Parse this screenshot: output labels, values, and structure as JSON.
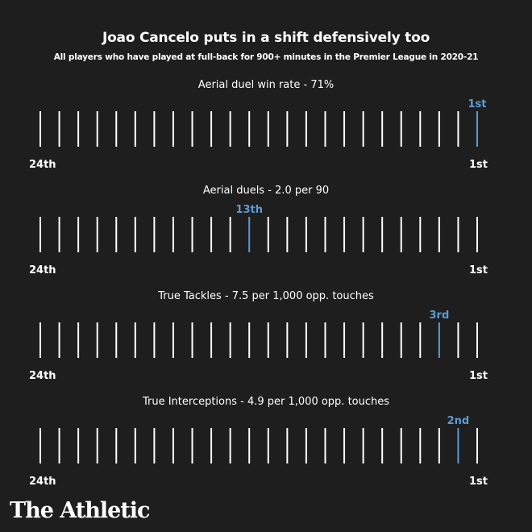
{
  "header": {
    "title": "Joao Cancelo puts in a shift defensively too",
    "subtitle": "All players who have played at full-back for 900+ minutes in the Premier League in 2020-21"
  },
  "brand": "The Athletic",
  "colors": {
    "background": "#1e1e1e",
    "tick": "#ffffff",
    "highlight": "#5b9bd5"
  },
  "chart_data": [
    {
      "type": "rank-strip",
      "title": "Aerial duel win rate - 71%",
      "total": 24,
      "rank": 1,
      "rank_label": "1st",
      "left_label": "24th",
      "right_label": "1st"
    },
    {
      "type": "rank-strip",
      "title": "Aerial duels  - 2.0 per 90",
      "total": 24,
      "rank": 13,
      "rank_label": "13th",
      "left_label": "24th",
      "right_label": "1st"
    },
    {
      "type": "rank-strip",
      "title": "True Tackles - 7.5 per 1,000 opp. touches",
      "total": 24,
      "rank": 3,
      "rank_label": "3rd",
      "left_label": "24th",
      "right_label": "1st"
    },
    {
      "type": "rank-strip",
      "title": "True Interceptions - 4.9 per 1,000 opp. touches",
      "total": 24,
      "rank": 2,
      "rank_label": "2nd",
      "left_label": "24th",
      "right_label": "1st"
    }
  ]
}
